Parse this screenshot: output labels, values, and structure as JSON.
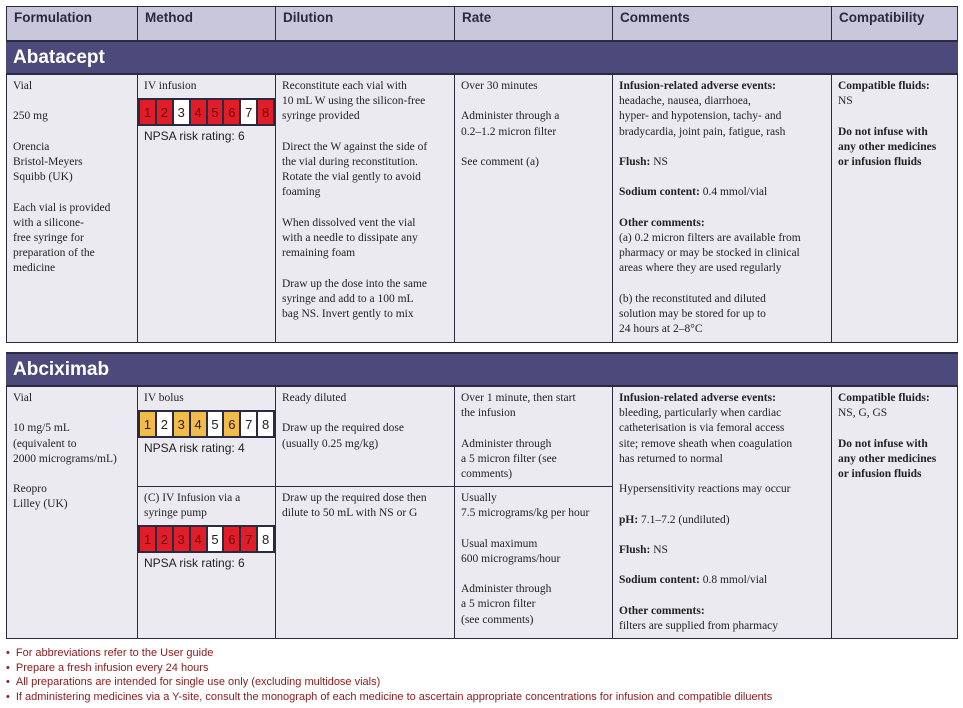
{
  "headers": [
    "Formulation",
    "Method",
    "Dilution",
    "Rate",
    "Comments",
    "Compatibility"
  ],
  "colors": {
    "header_bg": "#c9c7dc",
    "drug_bar": "#4c4a7a",
    "cell_bg": "#ebeaf1",
    "risk_red": "#e21d2a",
    "risk_amber": "#f3bb4a",
    "footnote": "#8b1a1a"
  },
  "drugs": [
    {
      "name": "Abatacept",
      "formulation": [
        "Vial",
        "250 mg",
        "Orencia\nBristol-Meyers\nSquibb (UK)",
        "Each vial is provided\nwith a silicone-\nfree syringe for\npreparation of the\nmedicine"
      ],
      "methods": [
        {
          "label": "IV infusion",
          "risk": [
            "red",
            "red",
            "white",
            "red",
            "red",
            "red",
            "white",
            "red"
          ],
          "rating": "NPSA risk rating: 6",
          "dilution": [
            "Reconstitute each vial with\n10 mL W using the silicon-free\nsyringe provided",
            "Direct the W against the side of\nthe vial during reconstitution.\nRotate the vial gently to avoid\nfoaming",
            "When dissolved vent the vial\nwith a needle to dissipate any\nremaining foam",
            "Draw up the dose into the same\nsyringe and add to a 100 mL\nbag NS. Invert gently to mix"
          ],
          "rate": [
            "Over 30 minutes",
            "Administer through a\n0.2–1.2 micron filter",
            "See comment (a)"
          ]
        }
      ],
      "comments": [
        {
          "title": "Infusion-related adverse events:",
          "text": "headache, nausea, diarrhoea,\nhyper- and hypotension, tachy- and\nbradycardia, joint pain, fatigue, rash"
        },
        {
          "title": "Flush:",
          "text": " NS"
        },
        {
          "title": "Sodium content:",
          "text": " 0.4 mmol/vial"
        },
        {
          "title": "Other comments:",
          "text": "(a) 0.2 micron filters are available from\npharmacy or may be stocked in clinical\nareas where they are used regularly"
        },
        {
          "title": "",
          "text": "(b) the reconstituted and diluted\nsolution may be stored for up to\n24 hours at 2–8°C"
        }
      ],
      "compat_title": "Compatible fluids:",
      "compat_fluids": "NS",
      "compat_note": "Do not infuse with\nany other medicines\nor infusion fluids"
    },
    {
      "name": "Abciximab",
      "formulation": [
        "Vial",
        "10 mg/5 mL\n(equivalent to\n2000 micrograms/mL)",
        "Reopro\nLilley (UK)"
      ],
      "methods": [
        {
          "label": "IV bolus",
          "risk": [
            "amber",
            "white",
            "amber",
            "amber",
            "white",
            "amber",
            "white",
            "white"
          ],
          "rating": "NPSA risk rating: 4",
          "dilution": [
            "Ready diluted",
            "Draw up the required dose\n(usually 0.25 mg/kg)"
          ],
          "rate": [
            "Over 1 minute, then start\nthe infusion",
            "Administer through\na 5 micron filter (see\ncomments)"
          ]
        },
        {
          "label": "(C) IV Infusion via a\nsyringe pump",
          "risk": [
            "red",
            "red",
            "red",
            "red",
            "white",
            "red",
            "red",
            "white"
          ],
          "rating": "NPSA risk rating: 6",
          "dilution": [
            "Draw up the required dose then\ndilute to 50 mL with NS or G"
          ],
          "rate": [
            "Usually\n7.5 micrograms/kg per hour",
            "Usual maximum\n600 micrograms/hour",
            "Administer through\na 5 micron filter\n(see comments)"
          ]
        }
      ],
      "comments": [
        {
          "title": "Infusion-related adverse events:",
          "text": "bleeding, particularly when cardiac\ncatheterisation is via femoral access\nsite; remove sheath when coagulation\nhas returned to normal"
        },
        {
          "title": "",
          "text": "Hypersensitivity reactions may occur"
        },
        {
          "title": "pH:",
          "text": " 7.1–7.2 (undiluted)"
        },
        {
          "title": "Flush:",
          "text": " NS"
        },
        {
          "title": "Sodium content:",
          "text": " 0.8 mmol/vial"
        },
        {
          "title": "Other comments:",
          "text": "filters are supplied from pharmacy"
        }
      ],
      "compat_title": "Compatible fluids:",
      "compat_fluids": "NS, G, GS",
      "compat_note": "Do not infuse with\nany other medicines\nor infusion fluids"
    }
  ],
  "footnotes": [
    "For abbreviations refer to the User guide",
    "Prepare a fresh infusion every 24 hours",
    "All preparations are intended for single use only (excluding multidose vials)",
    "If administering medicines via a Y-site, consult the monograph of each medicine to ascertain appropriate concentrations for infusion and compatible diluents"
  ]
}
